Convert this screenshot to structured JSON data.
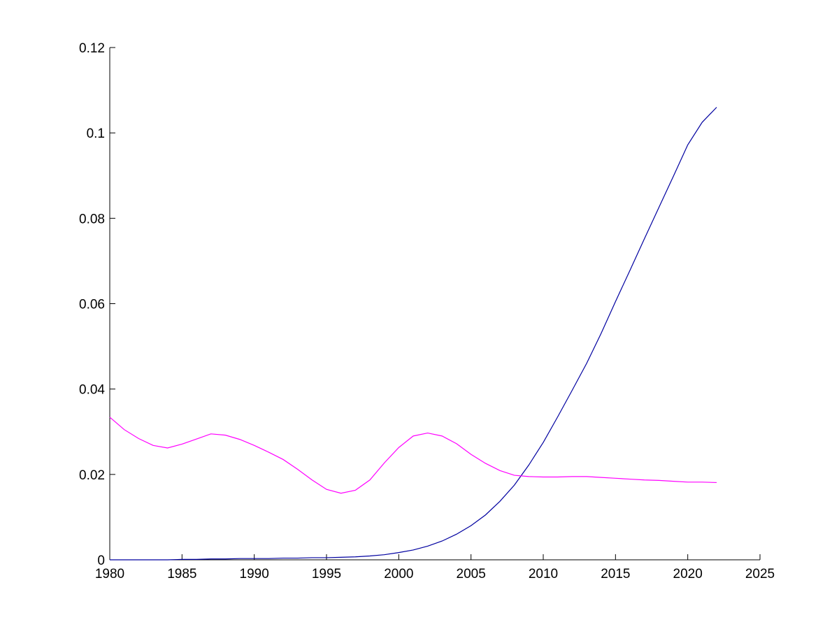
{
  "chart_data": {
    "type": "line",
    "title": "",
    "xlabel": "",
    "ylabel": "",
    "xlim": [
      1980,
      2025
    ],
    "ylim": [
      0,
      0.12
    ],
    "grid": false,
    "x_ticks": [
      "1980",
      "1985",
      "1990",
      "1995",
      "2000",
      "2005",
      "2010",
      "2015",
      "2020",
      "2025"
    ],
    "y_ticks": [
      "0",
      "0.02",
      "0.04",
      "0.06",
      "0.08",
      "0.1",
      "0.12"
    ],
    "x": [
      1980,
      1981,
      1982,
      1983,
      1984,
      1985,
      1986,
      1987,
      1988,
      1989,
      1990,
      1991,
      1992,
      1993,
      1994,
      1995,
      1996,
      1997,
      1998,
      1999,
      2000,
      2001,
      2002,
      2003,
      2004,
      2005,
      2006,
      2007,
      2008,
      2009,
      2010,
      2011,
      2012,
      2013,
      2014,
      2015,
      2016,
      2017,
      2018,
      2019,
      2020,
      2021,
      2022
    ],
    "series": [
      {
        "color": "#0000a0",
        "values": [
          0,
          0,
          0,
          0,
          0,
          0.0001,
          0.0001,
          0.0002,
          0.0002,
          0.0003,
          0.0003,
          0.0003,
          0.0004,
          0.0004,
          0.0005,
          0.0005,
          0.0006,
          0.0007,
          0.0009,
          0.0012,
          0.0017,
          0.0023,
          0.0032,
          0.0044,
          0.006,
          0.008,
          0.0105,
          0.0137,
          0.0175,
          0.0222,
          0.0275,
          0.0335,
          0.0397,
          0.046,
          0.053,
          0.0605,
          0.0678,
          0.0752,
          0.0825,
          0.0898,
          0.0972,
          0.1025,
          0.106
        ]
      },
      {
        "color": "#ff00ff",
        "values": [
          0.0334,
          0.0305,
          0.0284,
          0.0268,
          0.0262,
          0.0271,
          0.0283,
          0.0295,
          0.0292,
          0.0282,
          0.0268,
          0.0252,
          0.0235,
          0.0212,
          0.0187,
          0.0165,
          0.0156,
          0.0163,
          0.0187,
          0.0227,
          0.0263,
          0.029,
          0.0297,
          0.029,
          0.0272,
          0.0247,
          0.0226,
          0.0209,
          0.0198,
          0.0195,
          0.0194,
          0.0194,
          0.0195,
          0.0195,
          0.0193,
          0.0191,
          0.0189,
          0.0187,
          0.0186,
          0.0184,
          0.0182,
          0.0182,
          0.0181
        ]
      }
    ]
  }
}
